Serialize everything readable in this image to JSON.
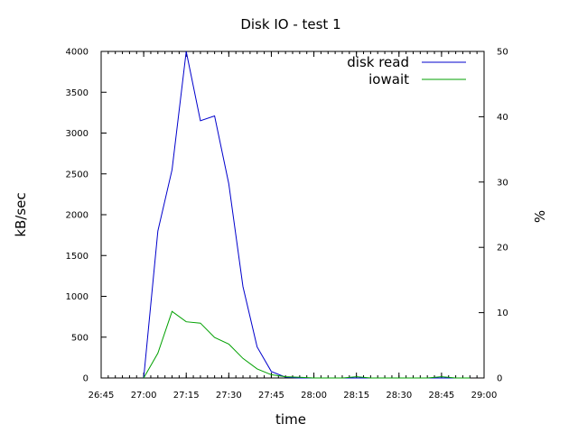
{
  "chart_data": {
    "type": "line",
    "title": "Disk IO - test 1",
    "xlabel": "time",
    "ylabel": "kB/sec",
    "y2label": "%",
    "x_ticks": [
      "26:45",
      "27:00",
      "27:15",
      "27:30",
      "27:45",
      "28:00",
      "28:15",
      "28:30",
      "28:45",
      "29:00"
    ],
    "xlim_seconds": [
      1605,
      1740
    ],
    "ylim": [
      0,
      4000
    ],
    "y_ticks": [
      0,
      500,
      1000,
      1500,
      2000,
      2500,
      3000,
      3500,
      4000
    ],
    "y2lim": [
      0,
      50
    ],
    "y2_ticks": [
      0,
      10,
      20,
      30,
      40,
      50
    ],
    "legend_position": "top-right",
    "grid": false,
    "x_seconds": [
      1620,
      1625,
      1630,
      1635,
      1640,
      1645,
      1650,
      1655,
      1660,
      1665,
      1670,
      1675,
      1680,
      1685,
      1690,
      1695,
      1700,
      1705,
      1710,
      1715,
      1720,
      1725,
      1730,
      1735
    ],
    "series": [
      {
        "name": "disk read",
        "axis": "left",
        "color": "#0000cc",
        "values": [
          0,
          1800,
          2550,
          4000,
          3150,
          3210,
          2380,
          1120,
          380,
          80,
          10,
          0,
          0,
          0,
          0,
          0,
          0,
          0,
          0,
          0,
          0,
          0,
          0,
          0
        ]
      },
      {
        "name": "iowait",
        "axis": "right",
        "color": "#00a000",
        "values": [
          0,
          3.8,
          10.2,
          8.6,
          8.4,
          6.2,
          5.2,
          3.0,
          1.4,
          0.5,
          0.2,
          0.1,
          0,
          0,
          0,
          0.2,
          0,
          0,
          0,
          0,
          0,
          0.2,
          0,
          0
        ]
      }
    ]
  }
}
